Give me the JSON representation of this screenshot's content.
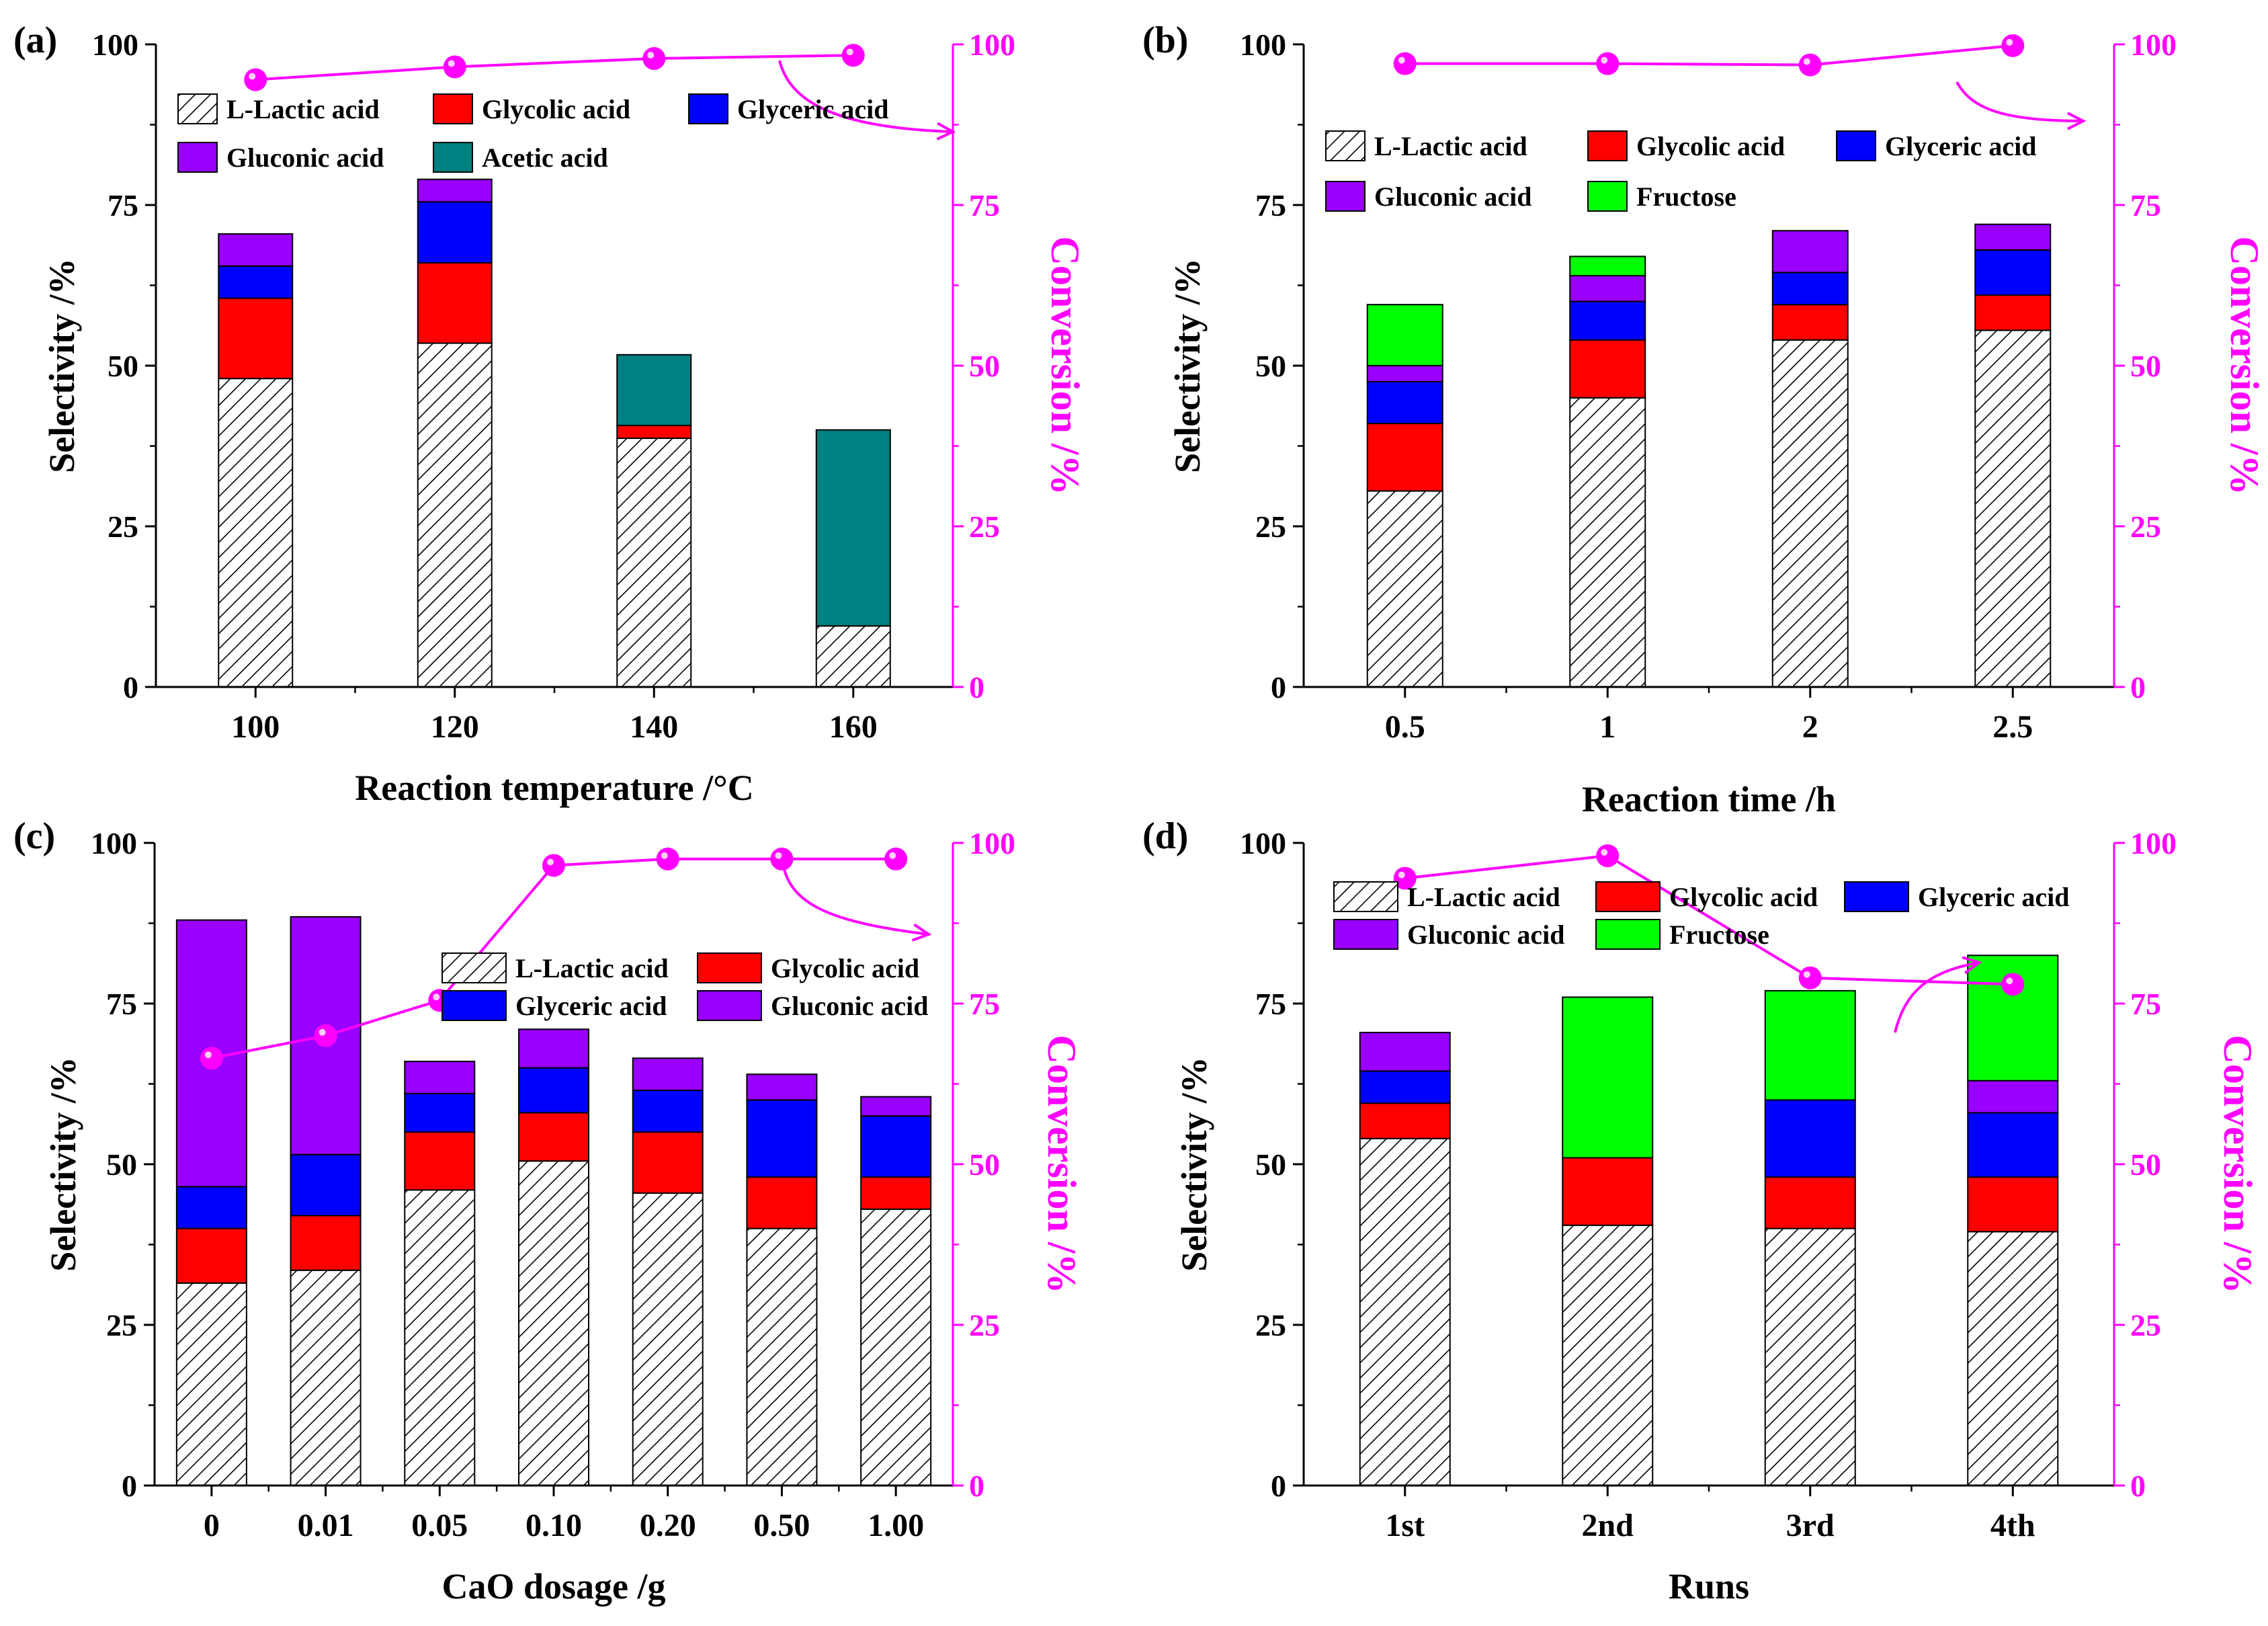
{
  "colors": {
    "lactic": "#ffffff",
    "glycolic": "#ff0000",
    "glyceric": "#0000ff",
    "gluconic": "#9900ff",
    "acetic": "#008080",
    "fructose": "#00ff00",
    "conversion": "#ff00ff",
    "axis": "#000000"
  },
  "chart_data": [
    {
      "panel_label": "(a)",
      "type": "bar",
      "stacked": true,
      "xlabel": "Reaction temperature /°C",
      "ylabel": "Selectivity /%",
      "y2label": "Conversion /%",
      "ylim": [
        0,
        100
      ],
      "y2lim": [
        0,
        100
      ],
      "yticks": [
        "0",
        "25",
        "50",
        "75",
        "100"
      ],
      "y2ticks": [
        "0",
        "25",
        "50",
        "75",
        "100"
      ],
      "categories": [
        "100",
        "120",
        "140",
        "160"
      ],
      "legend_columns": 3,
      "series": [
        {
          "name": "L-Lactic acid",
          "key": "lactic",
          "values": [
            48,
            53.5,
            38.7,
            9.5
          ]
        },
        {
          "name": "Glycolic acid",
          "key": "glycolic",
          "values": [
            12.5,
            12.5,
            2,
            0
          ]
        },
        {
          "name": "Glyceric acid",
          "key": "glyceric",
          "values": [
            5,
            9.5,
            0,
            0
          ]
        },
        {
          "name": "Gluconic acid",
          "key": "gluconic",
          "values": [
            5,
            3.5,
            0,
            0
          ]
        },
        {
          "name": "Acetic acid",
          "key": "acetic",
          "values": [
            0,
            0,
            11,
            30.5
          ]
        }
      ],
      "conversion": [
        94.5,
        96.5,
        97.8,
        98.3
      ]
    },
    {
      "panel_label": "(b)",
      "type": "bar",
      "stacked": true,
      "xlabel": "Reaction time /h",
      "ylabel": "Selectivity /%",
      "y2label": "Conversion /%",
      "ylim": [
        0,
        100
      ],
      "y2lim": [
        0,
        100
      ],
      "yticks": [
        "0",
        "25",
        "50",
        "75",
        "100"
      ],
      "y2ticks": [
        "0",
        "25",
        "50",
        "75",
        "100"
      ],
      "categories": [
        "0.5",
        "1",
        "2",
        "2.5"
      ],
      "legend_columns": 3,
      "series": [
        {
          "name": "L-Lactic acid",
          "key": "lactic",
          "values": [
            30.5,
            45,
            54,
            55.5
          ]
        },
        {
          "name": "Glycolic acid",
          "key": "glycolic",
          "values": [
            10.5,
            9,
            5.5,
            5.5
          ]
        },
        {
          "name": "Glyceric acid",
          "key": "glyceric",
          "values": [
            6.5,
            6,
            5,
            7
          ]
        },
        {
          "name": "Gluconic acid",
          "key": "gluconic",
          "values": [
            2.5,
            4,
            6.5,
            4
          ]
        },
        {
          "name": "Fructose",
          "key": "fructose",
          "values": [
            9.5,
            3,
            0,
            0
          ]
        }
      ],
      "conversion": [
        97,
        97,
        96.8,
        99.8
      ]
    },
    {
      "panel_label": "(c)",
      "type": "bar",
      "stacked": true,
      "xlabel": "CaO dosage /g",
      "ylabel": "Selectivity /%",
      "y2label": "Conversion /%",
      "ylim": [
        0,
        100
      ],
      "y2lim": [
        0,
        100
      ],
      "yticks": [
        "0",
        "25",
        "50",
        "75",
        "100"
      ],
      "y2ticks": [
        "0",
        "25",
        "50",
        "75",
        "100"
      ],
      "categories": [
        "0",
        "0.01",
        "0.05",
        "0.10",
        "0.20",
        "0.50",
        "1.00"
      ],
      "legend_columns": 2,
      "series": [
        {
          "name": "L-Lactic acid",
          "key": "lactic",
          "values": [
            31.5,
            33.5,
            46,
            50.5,
            45.5,
            40,
            43
          ]
        },
        {
          "name": "Glycolic acid",
          "key": "glycolic",
          "values": [
            8.5,
            8.5,
            9,
            7.5,
            9.5,
            8,
            5
          ]
        },
        {
          "name": "Glyceric acid",
          "key": "glyceric",
          "values": [
            6.5,
            9.5,
            6,
            7,
            6.5,
            12,
            9.5
          ]
        },
        {
          "name": "Gluconic acid",
          "key": "gluconic",
          "values": [
            41.5,
            37,
            5,
            6,
            5,
            4,
            3
          ]
        }
      ],
      "conversion": [
        66.5,
        70,
        75.5,
        96.5,
        97.5,
        97.5,
        97.5
      ]
    },
    {
      "panel_label": "(d)",
      "type": "bar",
      "stacked": true,
      "xlabel": "Runs",
      "ylabel": "Selectivity /%",
      "y2label": "Conversion /%",
      "ylim": [
        0,
        100
      ],
      "y2lim": [
        0,
        100
      ],
      "yticks": [
        "0",
        "25",
        "50",
        "75",
        "100"
      ],
      "y2ticks": [
        "0",
        "25",
        "50",
        "75",
        "100"
      ],
      "categories": [
        "1st",
        "2nd",
        "3rd",
        "4th"
      ],
      "legend_columns": 3,
      "series": [
        {
          "name": "L-Lactic acid",
          "key": "lactic",
          "values": [
            54,
            40.5,
            40,
            39.5
          ]
        },
        {
          "name": "Glycolic acid",
          "key": "glycolic",
          "values": [
            5.5,
            10.5,
            8,
            8.5
          ]
        },
        {
          "name": "Glyceric acid",
          "key": "glyceric",
          "values": [
            5,
            0,
            12,
            10
          ]
        },
        {
          "name": "Gluconic acid",
          "key": "gluconic",
          "values": [
            6,
            0,
            0,
            5
          ]
        },
        {
          "name": "Fructose",
          "key": "fructose",
          "values": [
            0,
            25,
            17,
            19.5
          ]
        }
      ],
      "conversion": [
        94.5,
        98,
        79,
        78
      ]
    }
  ]
}
